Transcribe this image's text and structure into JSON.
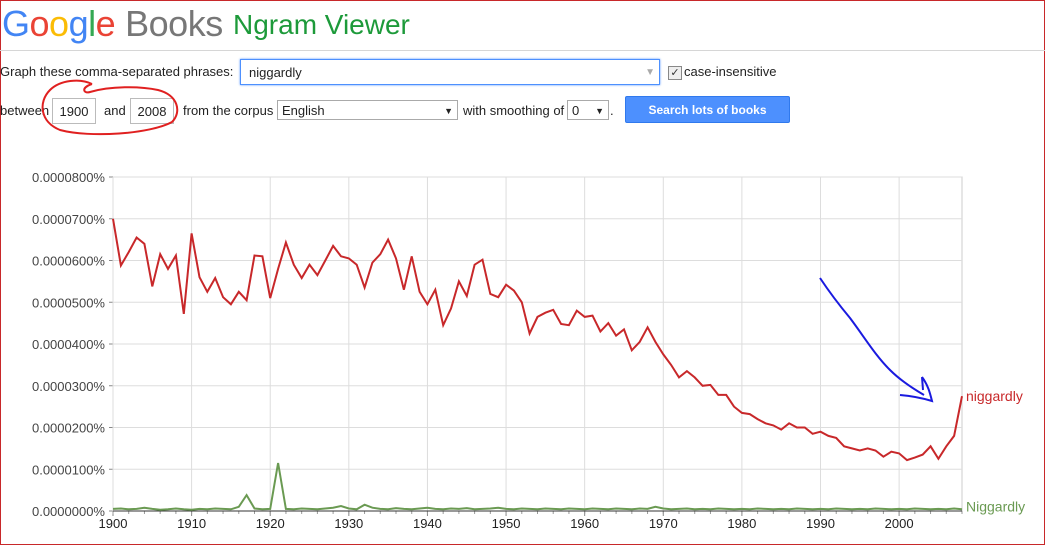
{
  "header": {
    "logo_letters": [
      "G",
      "o",
      "o",
      "g",
      "l",
      "e"
    ],
    "logo_books": "Books",
    "app_name": "Ngram Viewer"
  },
  "form": {
    "phrases_label": "Graph these comma-separated phrases:",
    "phrases_value": "niggardly",
    "case_insensitive_label": "case-insensitive",
    "case_insensitive_checked": true,
    "between_label": "between",
    "start_year": "1900",
    "and_label": "and",
    "end_year": "2008",
    "corpus_label": "from the corpus",
    "corpus_value": "English",
    "smoothing_label": "with smoothing of",
    "smoothing_value": "0",
    "period": ".",
    "search_button": "Search lots of books"
  },
  "colors": {
    "series_lower": "#c8282a",
    "series_capital": "#6a9a52",
    "annotation_red": "#e02020",
    "annotation_blue": "#1a1adf"
  },
  "chart_data": {
    "type": "line",
    "x_start": 1900,
    "x_end": 2008,
    "xticks": [
      "1900",
      "1910",
      "1920",
      "1930",
      "1940",
      "1950",
      "1960",
      "1970",
      "1980",
      "1990",
      "2000"
    ],
    "ytick_labels": [
      "0.0000000%",
      "0.0000100%",
      "0.0000200%",
      "0.0000300%",
      "0.0000400%",
      "0.0000500%",
      "0.0000600%",
      "0.0000700%",
      "0.0000800%"
    ],
    "ylim": [
      0,
      8e-05
    ],
    "grid": true,
    "series": [
      {
        "name": "niggardly",
        "values": [
          7e-05,
          5.88e-05,
          6.2e-05,
          6.55e-05,
          6.4e-05,
          5.38e-05,
          6.15e-05,
          5.8e-05,
          6.12e-05,
          4.72e-05,
          6.65e-05,
          5.6e-05,
          5.25e-05,
          5.58e-05,
          5.12e-05,
          4.95e-05,
          5.25e-05,
          5.05e-05,
          6.12e-05,
          6.1e-05,
          5.1e-05,
          5.8e-05,
          6.43e-05,
          5.9e-05,
          5.58e-05,
          5.9e-05,
          5.65e-05,
          6e-05,
          6.35e-05,
          6.1e-05,
          6.05e-05,
          5.9e-05,
          5.35e-05,
          5.95e-05,
          6.15e-05,
          6.5e-05,
          6.05e-05,
          5.3e-05,
          6.1e-05,
          5.25e-05,
          4.95e-05,
          5.3e-05,
          4.45e-05,
          4.85e-05,
          5.5e-05,
          5.15e-05,
          5.9e-05,
          6.02e-05,
          5.2e-05,
          5.12e-05,
          5.42e-05,
          5.28e-05,
          5e-05,
          4.25e-05,
          4.65e-05,
          4.75e-05,
          4.82e-05,
          4.48e-05,
          4.45e-05,
          4.8e-05,
          4.65e-05,
          4.68e-05,
          4.3e-05,
          4.5e-05,
          4.2e-05,
          4.35e-05,
          3.85e-05,
          4.05e-05,
          4.4e-05,
          4.05e-05,
          3.75e-05,
          3.5e-05,
          3.2e-05,
          3.35e-05,
          3.2e-05,
          3e-05,
          3.02e-05,
          2.78e-05,
          2.78e-05,
          2.5e-05,
          2.35e-05,
          2.32e-05,
          2.2e-05,
          2.1e-05,
          2.05e-05,
          1.95e-05,
          2.1e-05,
          2e-05,
          2e-05,
          1.85e-05,
          1.9e-05,
          1.8e-05,
          1.75e-05,
          1.55e-05,
          1.5e-05,
          1.45e-05,
          1.5e-05,
          1.45e-05,
          1.3e-05,
          1.42e-05,
          1.38e-05,
          1.22e-05,
          1.28e-05,
          1.35e-05,
          1.55e-05,
          1.25e-05,
          1.55e-05,
          1.8e-05,
          2.75e-05
        ]
      },
      {
        "name": "Niggardly",
        "values": [
          5e-07,
          6e-07,
          4e-07,
          5e-07,
          8e-07,
          5e-07,
          3e-07,
          4e-07,
          6e-07,
          4e-07,
          3e-07,
          5e-07,
          4e-07,
          6e-07,
          5e-07,
          4e-07,
          1e-06,
          3.8e-06,
          6e-07,
          4e-07,
          5e-07,
          1.15e-05,
          5e-07,
          4e-07,
          6e-07,
          5e-07,
          4e-07,
          6e-07,
          8e-07,
          1.2e-06,
          6e-07,
          4e-07,
          1.5e-06,
          8e-07,
          5e-07,
          4e-07,
          7e-07,
          5e-07,
          4e-07,
          6e-07,
          8e-07,
          5e-07,
          4e-07,
          6e-07,
          5e-07,
          7e-07,
          4e-07,
          5e-07,
          6e-07,
          8e-07,
          5e-07,
          4e-07,
          6e-07,
          5e-07,
          4e-07,
          6e-07,
          5e-07,
          4e-07,
          6e-07,
          5e-07,
          4e-07,
          6e-07,
          5e-07,
          4e-07,
          6e-07,
          5e-07,
          4e-07,
          6e-07,
          5e-07,
          1e-06,
          6e-07,
          4e-07,
          5e-07,
          6e-07,
          4e-07,
          5e-07,
          4e-07,
          6e-07,
          5e-07,
          4e-07,
          5e-07,
          4e-07,
          6e-07,
          5e-07,
          4e-07,
          5e-07,
          4e-07,
          6e-07,
          5e-07,
          4e-07,
          5e-07,
          4e-07,
          6e-07,
          5e-07,
          4e-07,
          5e-07,
          4e-07,
          6e-07,
          5e-07,
          4e-07,
          5e-07,
          4e-07,
          6e-07,
          5e-07,
          4e-07,
          5e-07,
          4e-07,
          6e-07,
          4e-07
        ]
      }
    ]
  }
}
